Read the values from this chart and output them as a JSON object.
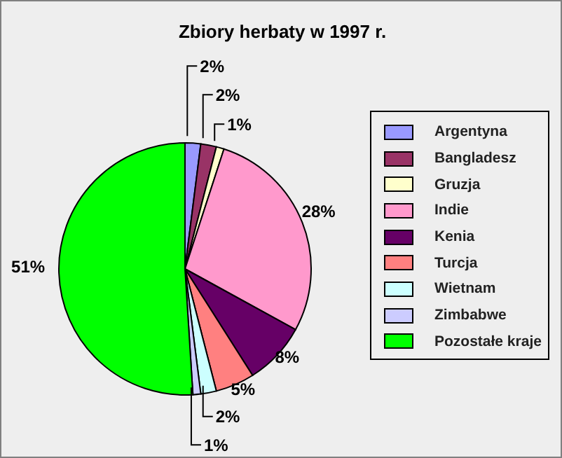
{
  "chart_data": {
    "type": "pie",
    "title": "Zbiory herbaty w 1997 r.",
    "categories": [
      "Argentyna",
      "Bangladesz",
      "Gruzja",
      "Indie",
      "Kenia",
      "Turcja",
      "Wietnam",
      "Zimbabwe",
      "Pozostałe kraje"
    ],
    "values": [
      2,
      2,
      1,
      28,
      8,
      5,
      2,
      1,
      51
    ],
    "colors": [
      "#9999ff",
      "#993366",
      "#ffffcc",
      "#ff99cc",
      "#660066",
      "#ff8080",
      "#ccffff",
      "#ccccff",
      "#00ff00"
    ],
    "value_labels": [
      "2%",
      "2%",
      "1%",
      "28%",
      "8%",
      "5%",
      "2%",
      "1%",
      "51%"
    ],
    "legend": "right"
  }
}
